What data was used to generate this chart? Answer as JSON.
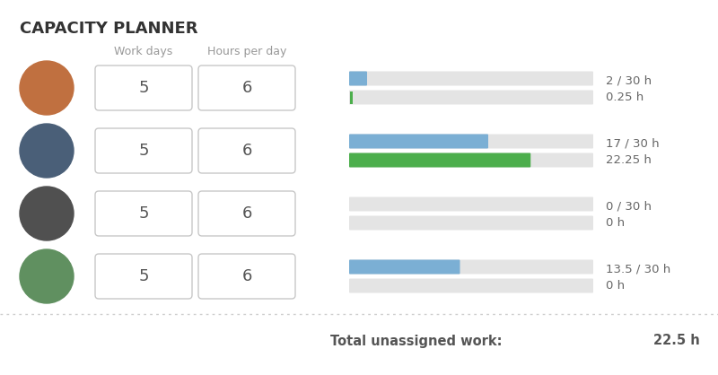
{
  "title": "CAPACITY PLANNER",
  "background_color": "#ffffff",
  "header_labels": [
    "Work days",
    "Hours per day"
  ],
  "rows": [
    {
      "work_days": "5",
      "hours_per_day": "6",
      "capacity": 30,
      "spent": 2,
      "unassigned": 0.25,
      "label_top": "2 / 30 h",
      "label_bottom": "0.25 h",
      "bar_spent_color": "#7bafd4",
      "bar_unassigned_color": "#4cae4c",
      "show_unassigned_bar": false,
      "show_green_tick": true
    },
    {
      "work_days": "5",
      "hours_per_day": "6",
      "capacity": 30,
      "spent": 17,
      "unassigned": 22.25,
      "label_top": "17 / 30 h",
      "label_bottom": "22.25 h",
      "bar_spent_color": "#7bafd4",
      "bar_unassigned_color": "#4cae4c",
      "show_unassigned_bar": true,
      "show_green_tick": false
    },
    {
      "work_days": "5",
      "hours_per_day": "6",
      "capacity": 30,
      "spent": 0,
      "unassigned": 0,
      "label_top": "0 / 30 h",
      "label_bottom": "0 h",
      "bar_spent_color": "#7bafd4",
      "bar_unassigned_color": "#4cae4c",
      "show_unassigned_bar": false,
      "show_green_tick": false
    },
    {
      "work_days": "5",
      "hours_per_day": "6",
      "capacity": 30,
      "spent": 13.5,
      "unassigned": 0,
      "label_top": "13.5 / 30 h",
      "label_bottom": "0 h",
      "bar_spent_color": "#7bafd4",
      "bar_unassigned_color": "#4cae4c",
      "show_unassigned_bar": false,
      "show_green_tick": false
    }
  ],
  "total_label": "Total unassigned work:",
  "total_value": "22.5 h",
  "bar_bg_color": "#e4e4e4",
  "box_border_color": "#c8c8c8",
  "text_color_dark": "#555555",
  "text_color_light": "#999999",
  "avatar_colors": [
    "#c07040",
    "#4a5f78",
    "#505050",
    "#609060"
  ]
}
